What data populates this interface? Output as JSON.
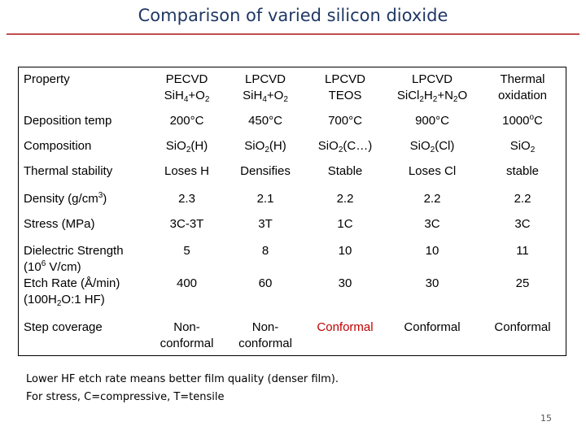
{
  "slide": {
    "title": "Comparison of varied silicon dioxide",
    "page_number": "15",
    "title_color": "#1f3864",
    "rule_color": "#c0504d",
    "highlight_color": "#c00000"
  },
  "table": {
    "header_label": "Property",
    "columns": [
      {
        "process": "PECVD",
        "chemistry": [
          [
            "Si",
            ""
          ],
          [
            "H",
            ""
          ],
          [
            "4",
            "sub"
          ],
          [
            "+O",
            ""
          ],
          [
            "2",
            "sub"
          ]
        ]
      },
      {
        "process": "LPCVD",
        "chemistry": [
          [
            "Si",
            ""
          ],
          [
            "H",
            ""
          ],
          [
            "4",
            "sub"
          ],
          [
            "+O",
            ""
          ],
          [
            "2",
            "sub"
          ]
        ]
      },
      {
        "process": "LPCVD",
        "chemistry": [
          [
            "TEOS",
            ""
          ]
        ]
      },
      {
        "process": "LPCVD",
        "chemistry": [
          [
            "Si",
            ""
          ],
          [
            "Cl",
            ""
          ],
          [
            "2",
            "sub"
          ],
          [
            "H",
            ""
          ],
          [
            "2",
            "sub"
          ],
          [
            "+N",
            ""
          ],
          [
            "2",
            "sub"
          ],
          [
            "O",
            ""
          ]
        ]
      },
      {
        "process": "Thermal",
        "chemistry": [
          [
            "oxidation",
            ""
          ]
        ]
      }
    ],
    "rows": [
      {
        "label": [
          [
            [
              "Deposition temp",
              ""
            ]
          ]
        ],
        "cells": [
          {
            "lines": [
              [
                [
                  "200°C",
                  ""
                ]
              ]
            ]
          },
          {
            "lines": [
              [
                [
                  "450°C",
                  ""
                ]
              ]
            ]
          },
          {
            "lines": [
              [
                [
                  "700°C",
                  ""
                ]
              ]
            ]
          },
          {
            "lines": [
              [
                [
                  "900°C",
                  ""
                ]
              ]
            ]
          },
          {
            "lines": [
              [
                [
                  "1000",
                  ""
                ],
                [
                  "o",
                  "sup"
                ],
                [
                  "C",
                  ""
                ]
              ]
            ]
          }
        ]
      },
      {
        "label": [
          [
            [
              "Composition",
              ""
            ]
          ]
        ],
        "cells": [
          {
            "lines": [
              [
                [
                  "Si",
                  ""
                ],
                [
                  "O",
                  ""
                ],
                [
                  "2",
                  "sub"
                ],
                [
                  "(H)",
                  ""
                ]
              ]
            ]
          },
          {
            "lines": [
              [
                [
                  "Si",
                  ""
                ],
                [
                  "O",
                  ""
                ],
                [
                  "2",
                  "sub"
                ],
                [
                  "(H)",
                  ""
                ]
              ]
            ]
          },
          {
            "lines": [
              [
                [
                  "Si",
                  ""
                ],
                [
                  "O",
                  ""
                ],
                [
                  "2",
                  "sub"
                ],
                [
                  "(C…)",
                  ""
                ]
              ]
            ]
          },
          {
            "lines": [
              [
                [
                  "Si",
                  ""
                ],
                [
                  "O",
                  ""
                ],
                [
                  "2",
                  "sub"
                ],
                [
                  "(Cl)",
                  ""
                ]
              ]
            ]
          },
          {
            "lines": [
              [
                [
                  "Si",
                  ""
                ],
                [
                  "O",
                  ""
                ],
                [
                  "2",
                  "sub"
                ]
              ]
            ]
          }
        ]
      },
      {
        "label": [
          [
            [
              "Thermal stability",
              ""
            ]
          ]
        ],
        "cells": [
          {
            "lines": [
              [
                [
                  "Loses H",
                  ""
                ]
              ]
            ]
          },
          {
            "lines": [
              [
                [
                  "Densifies",
                  ""
                ]
              ]
            ]
          },
          {
            "lines": [
              [
                [
                  "Stable",
                  ""
                ]
              ]
            ]
          },
          {
            "lines": [
              [
                [
                  "Loses Cl",
                  ""
                ]
              ]
            ]
          },
          {
            "lines": [
              [
                [
                  "stable",
                  ""
                ]
              ]
            ]
          }
        ]
      },
      {
        "label": [
          [
            [
              "Density (g/cm",
              ""
            ],
            [
              "3",
              "sup"
            ],
            [
              ")",
              ""
            ]
          ]
        ],
        "cells": [
          {
            "lines": [
              [
                [
                  "2.3",
                  ""
                ]
              ]
            ]
          },
          {
            "lines": [
              [
                [
                  "2.1",
                  ""
                ]
              ]
            ]
          },
          {
            "lines": [
              [
                [
                  "2.2",
                  ""
                ]
              ]
            ]
          },
          {
            "lines": [
              [
                [
                  "2.2",
                  ""
                ]
              ]
            ]
          },
          {
            "lines": [
              [
                [
                  "2.2",
                  ""
                ]
              ]
            ]
          }
        ]
      },
      {
        "label": [
          [
            [
              "Stress (MPa)",
              ""
            ]
          ]
        ],
        "cells": [
          {
            "lines": [
              [
                [
                  "3C-3T",
                  ""
                ]
              ]
            ]
          },
          {
            "lines": [
              [
                [
                  "3T",
                  ""
                ]
              ]
            ]
          },
          {
            "lines": [
              [
                [
                  "1C",
                  ""
                ]
              ]
            ]
          },
          {
            "lines": [
              [
                [
                  "3C",
                  ""
                ]
              ]
            ]
          },
          {
            "lines": [
              [
                [
                  "3C",
                  ""
                ]
              ]
            ]
          }
        ]
      },
      {
        "label": [
          [
            [
              "Dielectric Strength",
              ""
            ]
          ],
          [
            [
              "(10",
              ""
            ],
            [
              "6",
              "sup"
            ],
            [
              " V/cm)",
              ""
            ]
          ]
        ],
        "cells": [
          {
            "lines": [
              [
                [
                  "5",
                  ""
                ]
              ]
            ]
          },
          {
            "lines": [
              [
                [
                  "8",
                  ""
                ]
              ]
            ]
          },
          {
            "lines": [
              [
                [
                  "10",
                  ""
                ]
              ]
            ]
          },
          {
            "lines": [
              [
                [
                  "10",
                  ""
                ]
              ]
            ]
          },
          {
            "lines": [
              [
                [
                  "11",
                  ""
                ]
              ]
            ]
          }
        ]
      },
      {
        "label": [
          [
            [
              "Etch Rate (Å/min)",
              ""
            ]
          ],
          [
            [
              "(100H",
              ""
            ],
            [
              "2",
              "sub"
            ],
            [
              "O:1 HF)",
              ""
            ]
          ]
        ],
        "cells": [
          {
            "lines": [
              [
                [
                  "400",
                  ""
                ]
              ]
            ]
          },
          {
            "lines": [
              [
                [
                  "60",
                  ""
                ]
              ]
            ]
          },
          {
            "lines": [
              [
                [
                  "30",
                  ""
                ]
              ]
            ]
          },
          {
            "lines": [
              [
                [
                  "30",
                  ""
                ]
              ]
            ]
          },
          {
            "lines": [
              [
                [
                  "25",
                  ""
                ]
              ]
            ]
          }
        ]
      },
      {
        "label": [
          [
            [
              "Step coverage",
              ""
            ]
          ]
        ],
        "cells": [
          {
            "lines": [
              [
                [
                  "Non-",
                  ""
                ]
              ],
              [
                [
                  "conformal",
                  ""
                ]
              ]
            ]
          },
          {
            "lines": [
              [
                [
                  "Non-",
                  ""
                ]
              ],
              [
                [
                  "conformal",
                  ""
                ]
              ]
            ]
          },
          {
            "lines": [
              [
                [
                  "Conformal",
                  ""
                ]
              ]
            ],
            "highlight": true
          },
          {
            "lines": [
              [
                [
                  "Conformal",
                  ""
                ]
              ]
            ]
          },
          {
            "lines": [
              [
                [
                  "Conformal",
                  ""
                ]
              ]
            ]
          }
        ]
      }
    ]
  },
  "notes": [
    "Lower HF etch rate means better film quality (denser film).",
    "For stress, C=compressive, T=tensile"
  ]
}
